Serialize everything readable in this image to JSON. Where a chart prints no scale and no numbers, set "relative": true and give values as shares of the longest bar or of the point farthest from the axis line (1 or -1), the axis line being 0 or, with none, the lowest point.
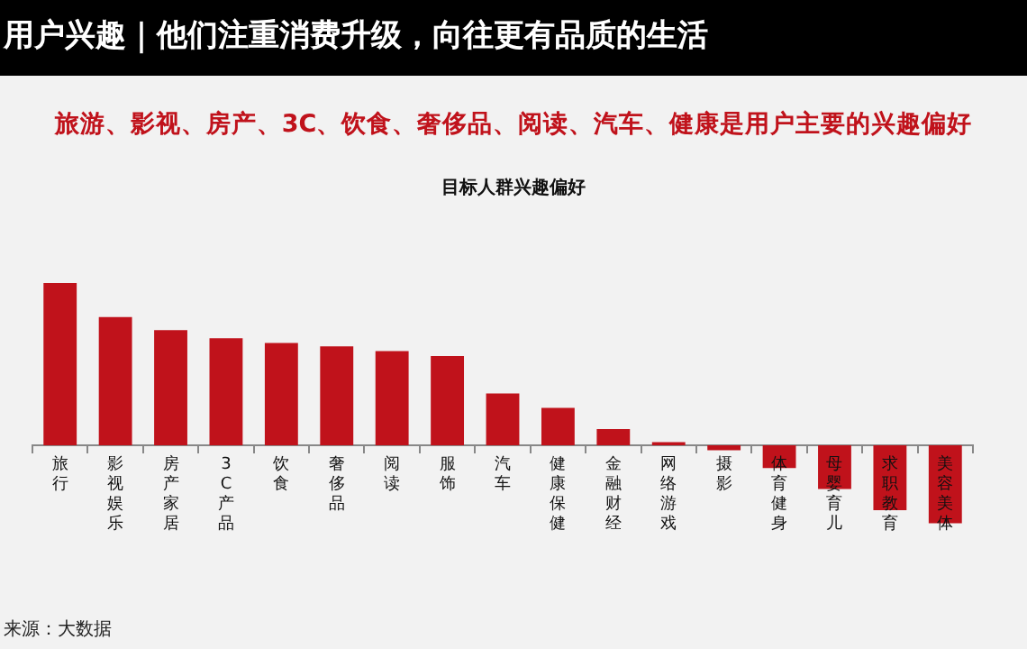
{
  "chart_data": {
    "type": "bar",
    "title": "用户兴趣｜他们注重消费升级，向往更有品质的生活",
    "subtitle": "旅游、影视、房产、3C、饮食、奢侈品、阅读、汽车、健康是用户主要的兴趣偏好",
    "annotations": [
      "目标人群兴趣偏好",
      "来源：大数据"
    ],
    "categories": [
      "旅行",
      "影视娱乐",
      "房产家居",
      "3C产品",
      "饮食",
      "奢侈品",
      "阅读",
      "服饰",
      "汽车",
      "健康保健",
      "金融财经",
      "网络游戏",
      "摄影",
      "体育健身",
      "母婴育儿",
      "求职教育",
      "美容美体"
    ],
    "values": [
      1,
      0.79,
      0.71,
      0.66,
      0.63,
      0.61,
      0.58,
      0.55,
      0.32,
      0.23,
      0.1,
      0.02,
      -0.03,
      -0.14,
      -0.27,
      -0.4,
      -0.48
    ],
    "color": "#c0121b",
    "relative": true,
    "grid": false,
    "legend": false
  }
}
